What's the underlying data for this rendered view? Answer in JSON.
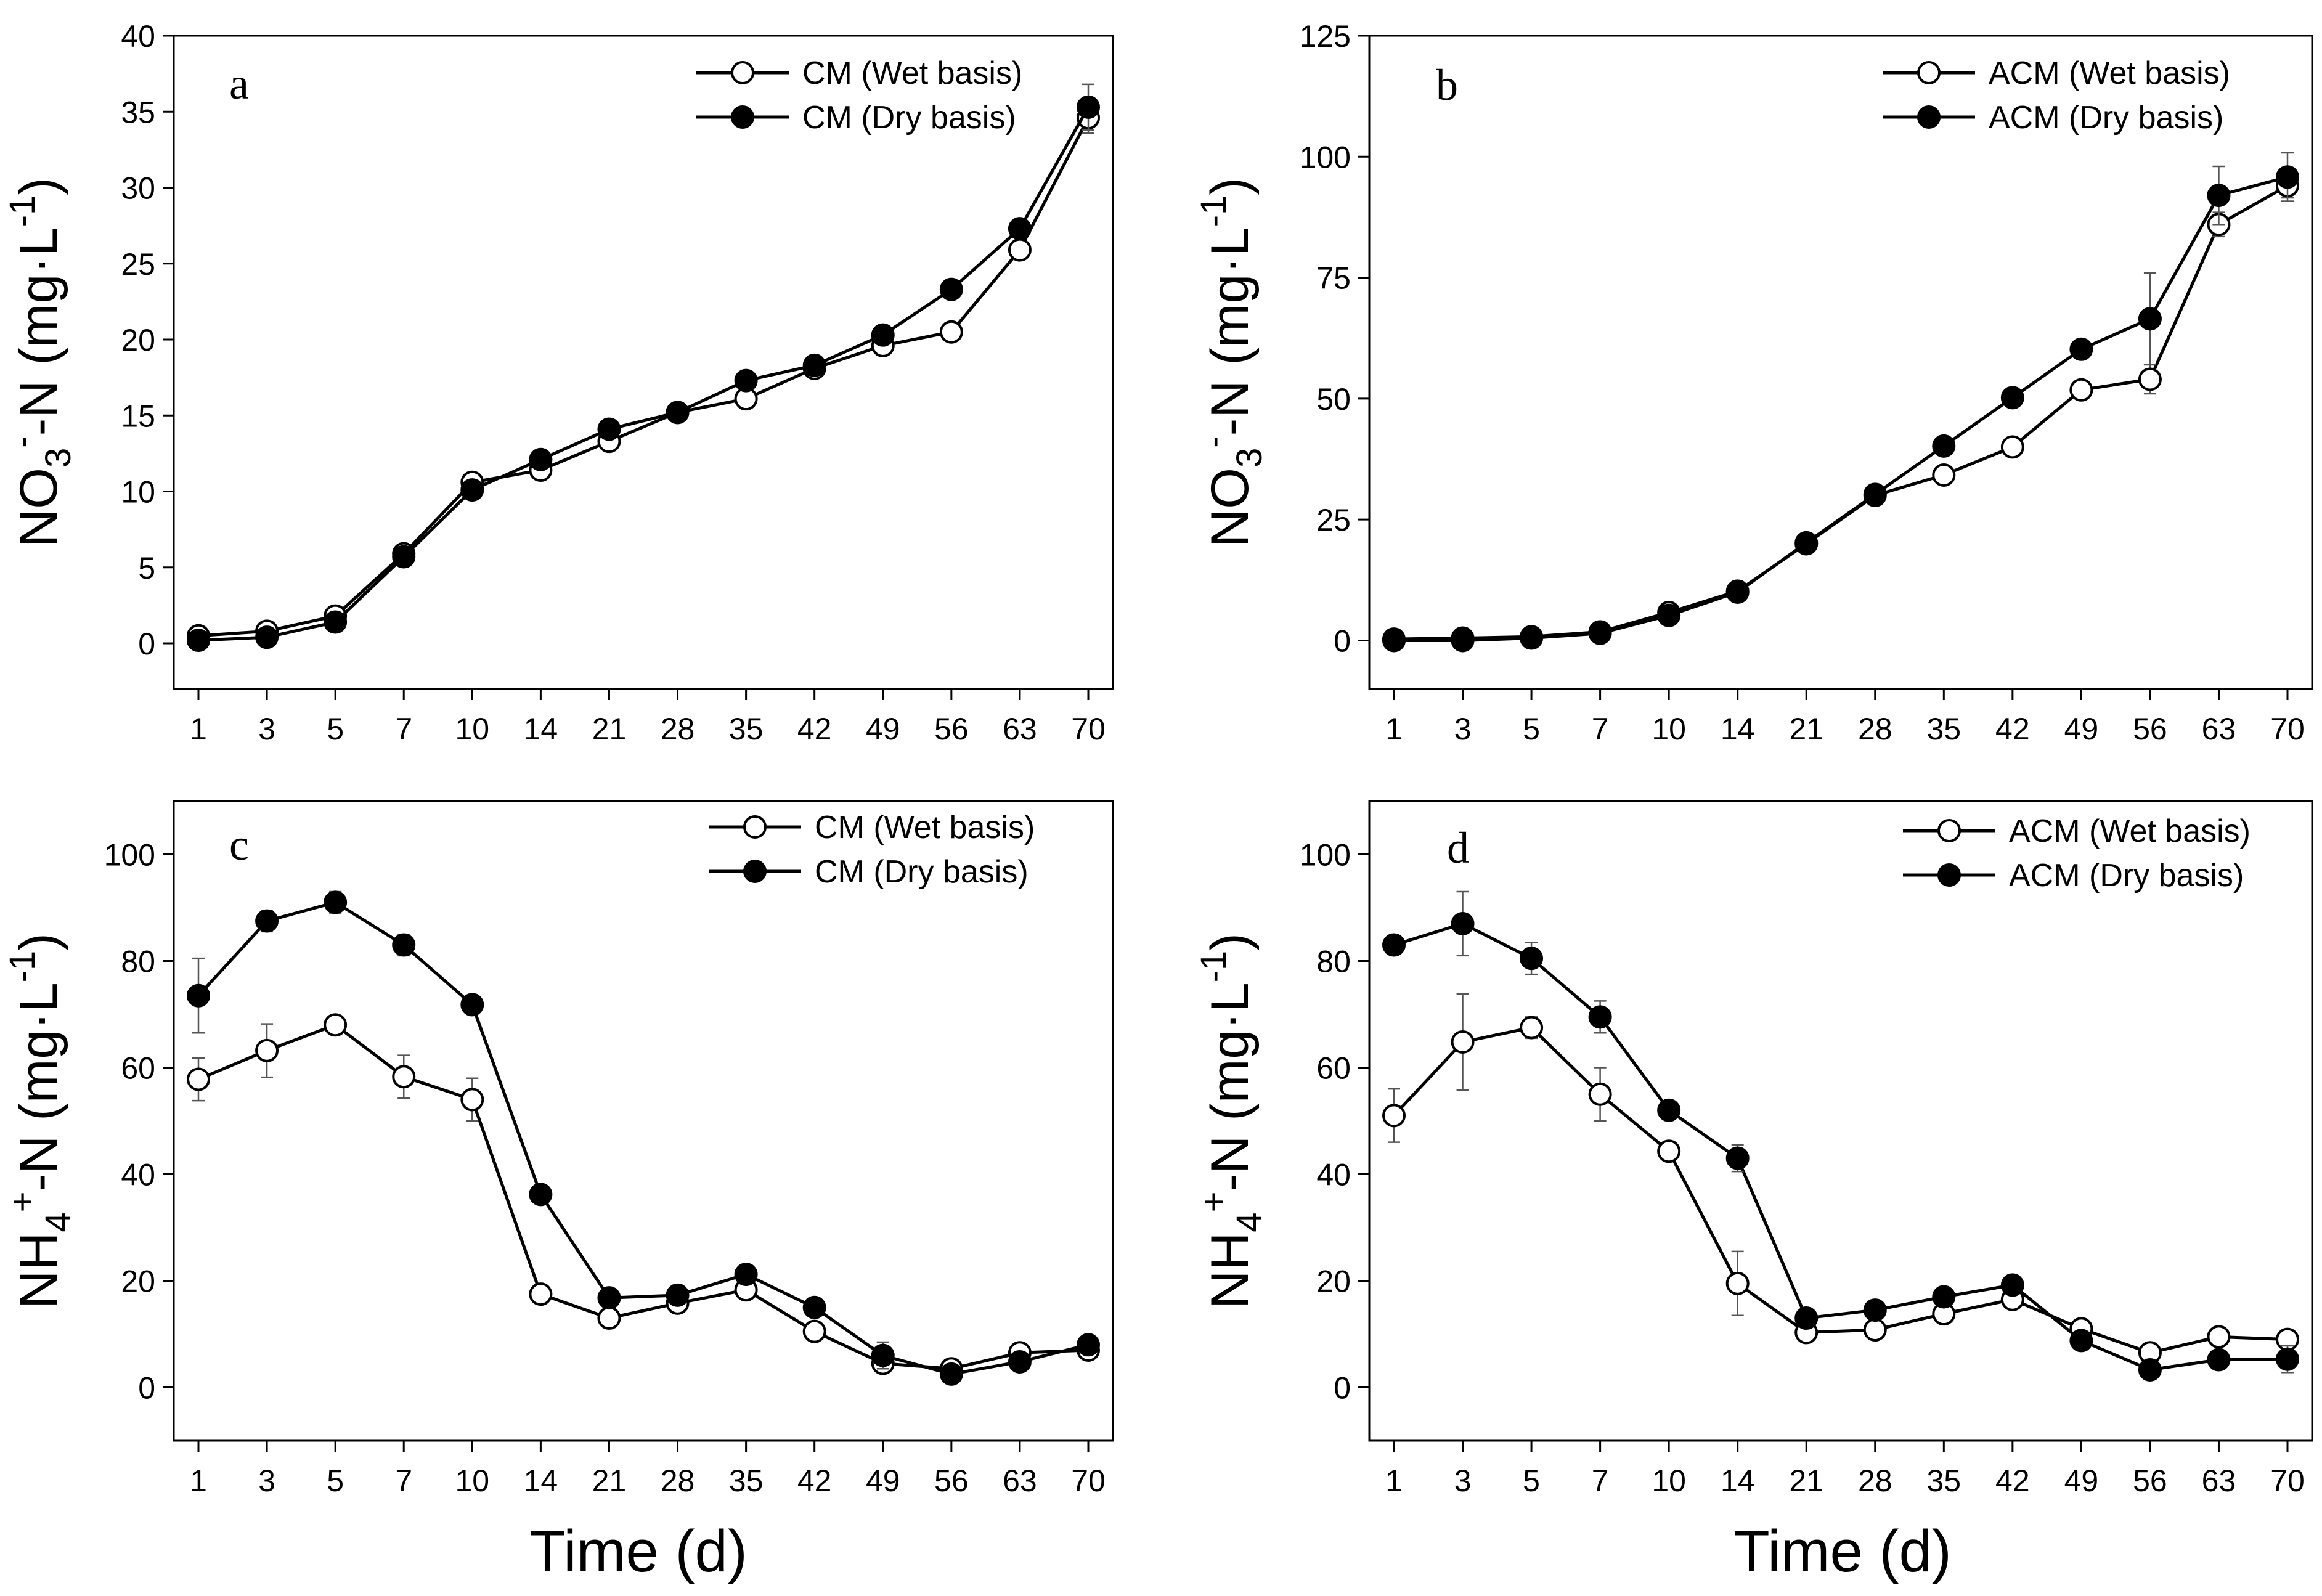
{
  "chart_data": [
    {
      "type": "line",
      "panel_label": "a",
      "categories": [
        "1",
        "3",
        "5",
        "7",
        "10",
        "14",
        "21",
        "28",
        "35",
        "42",
        "49",
        "56",
        "63",
        "70"
      ],
      "ylim": [
        -3,
        40
      ],
      "yticks": [
        0,
        5,
        10,
        15,
        20,
        25,
        30,
        35,
        40
      ],
      "ylabel": {
        "species": "NO",
        "sub": "3",
        "sup": "-",
        "rest": "-N (mg·L",
        "unit_sup": "-1",
        "close": ")"
      },
      "xlabel": "",
      "legend_position": "top-right",
      "series": [
        {
          "name": "CM (Wet basis)",
          "marker": "open",
          "values": [
            0.5,
            0.8,
            1.8,
            5.9,
            10.6,
            11.4,
            13.3,
            15.2,
            16.1,
            18.1,
            19.6,
            20.5,
            25.9,
            34.6
          ],
          "errors": [
            0.2,
            0.2,
            0.3,
            0.3,
            0.4,
            0.4,
            0.4,
            0.3,
            0.4,
            0.3,
            0.4,
            0.3,
            0.4,
            1.0
          ]
        },
        {
          "name": "CM (Dry basis)",
          "marker": "filled",
          "values": [
            0.2,
            0.4,
            1.4,
            5.7,
            10.1,
            12.1,
            14.1,
            15.2,
            17.3,
            18.3,
            20.3,
            23.3,
            27.3,
            35.3
          ],
          "errors": [
            0.2,
            0.2,
            0.3,
            0.3,
            0.4,
            0.4,
            0.4,
            0.3,
            0.4,
            0.3,
            0.4,
            0.3,
            0.4,
            1.5
          ]
        }
      ]
    },
    {
      "type": "line",
      "panel_label": "b",
      "categories": [
        "1",
        "3",
        "5",
        "7",
        "10",
        "14",
        "21",
        "28",
        "35",
        "42",
        "49",
        "56",
        "63",
        "70"
      ],
      "ylim": [
        -10,
        125
      ],
      "yticks": [
        0,
        25,
        50,
        75,
        100,
        125
      ],
      "ylabel": {
        "species": "NO",
        "sub": "3",
        "sup": "-",
        "rest": "-N (mg·L",
        "unit_sup": "-1",
        "close": ")"
      },
      "xlabel": "",
      "legend_position": "top-right",
      "series": [
        {
          "name": "ACM (Wet basis)",
          "marker": "open",
          "values": [
            0.3,
            0.5,
            0.8,
            1.8,
            5.8,
            10.2,
            20.0,
            30.0,
            34.2,
            40.0,
            51.8,
            54.0,
            86.0,
            94.0
          ],
          "errors": [
            0.3,
            0.3,
            0.3,
            0.5,
            0.8,
            0.8,
            1.0,
            1.0,
            1.5,
            1.5,
            1.5,
            3.0,
            2.5,
            2.5
          ]
        },
        {
          "name": "ACM (Dry basis)",
          "marker": "filled",
          "values": [
            0.0,
            0.0,
            0.5,
            1.5,
            5.2,
            10.0,
            20.2,
            30.2,
            40.2,
            50.2,
            60.2,
            66.5,
            92.0,
            95.8
          ],
          "errors": [
            0.3,
            0.3,
            0.3,
            0.5,
            0.8,
            0.8,
            1.0,
            1.0,
            1.0,
            1.0,
            1.0,
            9.5,
            6.0,
            5.0
          ]
        }
      ]
    },
    {
      "type": "line",
      "panel_label": "c",
      "categories": [
        "1",
        "3",
        "5",
        "7",
        "10",
        "14",
        "21",
        "28",
        "35",
        "42",
        "49",
        "56",
        "63",
        "70"
      ],
      "ylim": [
        -10,
        110
      ],
      "yticks": [
        0,
        20,
        40,
        60,
        80,
        100
      ],
      "ylabel": {
        "species": "NH",
        "sub": "4",
        "sup": "+",
        "rest": "-N (mg·L",
        "unit_sup": "-1",
        "close": ")"
      },
      "xlabel": "Time (d)",
      "legend_position": "top-right",
      "series": [
        {
          "name": "CM (Wet basis)",
          "marker": "open",
          "values": [
            57.8,
            63.2,
            68.0,
            58.3,
            54.0,
            17.5,
            13.0,
            15.8,
            18.3,
            10.5,
            4.5,
            3.5,
            6.5,
            7.0
          ],
          "errors": [
            4.0,
            5.0,
            1.5,
            4.0,
            4.0,
            1.0,
            1.5,
            1.0,
            1.0,
            1.0,
            1.5,
            1.0,
            1.0,
            1.0
          ]
        },
        {
          "name": "CM (Dry basis)",
          "marker": "filled",
          "values": [
            73.5,
            87.5,
            91.0,
            83.0,
            71.8,
            36.2,
            16.8,
            17.3,
            21.2,
            15.0,
            6.0,
            2.5,
            4.8,
            8.0
          ],
          "errors": [
            7.0,
            2.0,
            2.0,
            2.0,
            1.5,
            1.0,
            1.5,
            1.0,
            1.0,
            1.0,
            2.5,
            1.0,
            1.0,
            1.0
          ]
        }
      ]
    },
    {
      "type": "line",
      "panel_label": "d",
      "categories": [
        "1",
        "3",
        "5",
        "7",
        "10",
        "14",
        "21",
        "28",
        "35",
        "42",
        "49",
        "56",
        "63",
        "70"
      ],
      "ylim": [
        -10,
        110
      ],
      "yticks": [
        0,
        20,
        40,
        60,
        80,
        100
      ],
      "ylabel": {
        "species": "NH",
        "sub": "4",
        "sup": "+",
        "rest": "-N (mg·L",
        "unit_sup": "-1",
        "close": ")"
      },
      "xlabel": "Time (d)",
      "legend_position": "top-right",
      "series": [
        {
          "name": "ACM (Wet basis)",
          "marker": "open",
          "values": [
            51.0,
            64.8,
            67.5,
            55.0,
            44.3,
            19.5,
            10.3,
            10.8,
            13.8,
            16.5,
            11.0,
            6.5,
            9.5,
            9.0
          ],
          "errors": [
            5.0,
            9.0,
            2.0,
            5.0,
            1.0,
            6.0,
            1.0,
            1.0,
            1.0,
            1.0,
            1.0,
            1.0,
            1.0,
            1.0
          ]
        },
        {
          "name": "ACM (Dry basis)",
          "marker": "filled",
          "values": [
            83.0,
            87.0,
            80.5,
            69.5,
            52.0,
            43.0,
            13.0,
            14.5,
            17.0,
            19.2,
            8.8,
            3.3,
            5.2,
            5.3
          ],
          "errors": [
            1.0,
            6.0,
            3.0,
            3.0,
            1.0,
            2.5,
            1.0,
            1.0,
            1.0,
            1.0,
            1.0,
            1.0,
            1.5,
            2.5
          ]
        }
      ]
    }
  ]
}
